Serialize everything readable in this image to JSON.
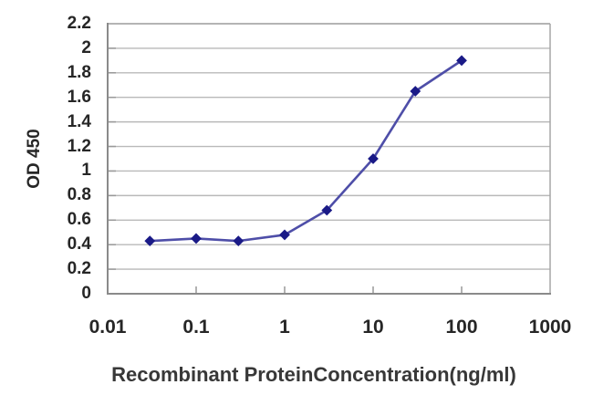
{
  "chart_data": {
    "type": "line",
    "title": "",
    "xlabel": "Recombinant ProteinConcentration(ng/ml)",
    "ylabel": "OD 450",
    "xscale": "log",
    "xlim": [
      0.01,
      1000
    ],
    "ylim": [
      0,
      2.2
    ],
    "x_tick_labels": [
      "0.01",
      "0.1",
      "1",
      "10",
      "100",
      "1000"
    ],
    "y_tick_labels": [
      "0",
      "0.2",
      "0.4",
      "0.6",
      "0.8",
      "1",
      "1.2",
      "1.4",
      "1.6",
      "1.8",
      "2",
      "2.2"
    ],
    "y_tick_values": [
      0,
      0.2,
      0.4,
      0.6,
      0.8,
      1,
      1.2,
      1.4,
      1.6,
      1.8,
      2,
      2.2
    ],
    "grid": "horizontal",
    "legend": "none",
    "series": [
      {
        "name": "OD450",
        "marker": "diamond",
        "x": [
          0.03,
          0.1,
          0.3,
          1,
          3,
          10,
          30,
          100
        ],
        "y": [
          0.43,
          0.45,
          0.43,
          0.48,
          0.68,
          1.1,
          1.65,
          1.9
        ]
      }
    ],
    "colors": {
      "line": "#4e4ea8",
      "marker": "#1a1a87",
      "gridline": "#b9b9b9",
      "axis": "#8a8a8a",
      "plot_border": "#a6a6a6",
      "tick": "#999999",
      "tick_label": "#262626",
      "background": "#ffffff"
    }
  }
}
